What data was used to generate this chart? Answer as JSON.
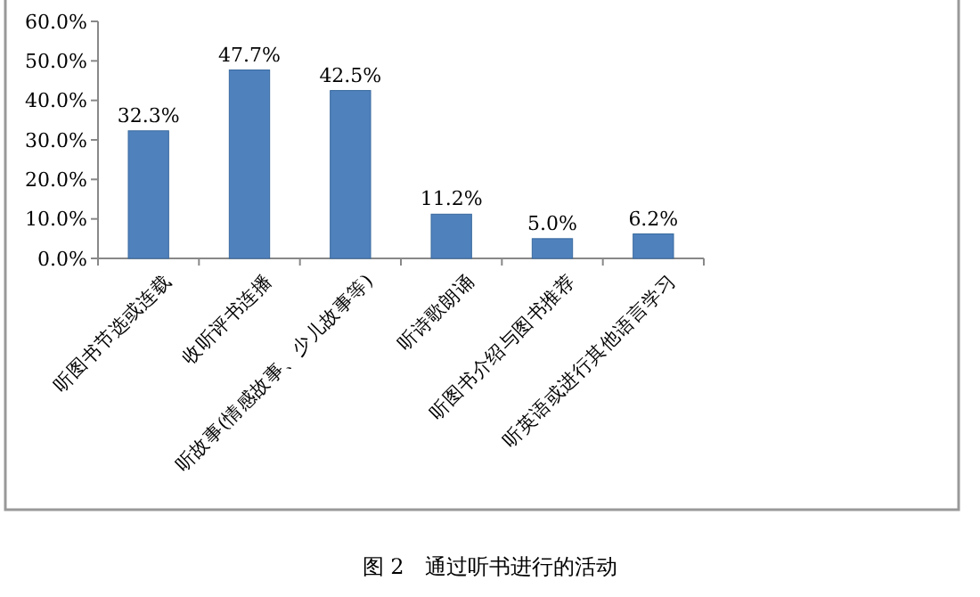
{
  "chart_data": {
    "type": "bar",
    "title": "图 2　通过听书进行的活动",
    "categories": [
      "听图书节选或连载",
      "收听评书连播",
      "听故事(情感故事、少儿故事等)",
      "听诗歌朗诵",
      "听图书介绍与图书推荐",
      "听英语或进行其他语言学习"
    ],
    "values": [
      32.3,
      47.7,
      42.5,
      11.2,
      5.0,
      6.2
    ],
    "value_labels": [
      "32.3%",
      "47.7%",
      "42.5%",
      "11.2%",
      "5.0%",
      "6.2%"
    ],
    "color": "#4f81bd",
    "ylim": [
      0,
      60
    ],
    "yticks": [
      {
        "value": 0,
        "label": "0.0%"
      },
      {
        "value": 10,
        "label": "10.0%"
      },
      {
        "value": 20,
        "label": "20.0%"
      },
      {
        "value": 30,
        "label": "30.0%"
      },
      {
        "value": 40,
        "label": "40.0%"
      },
      {
        "value": 50,
        "label": "50.0%"
      },
      {
        "value": 60,
        "label": "60.0%"
      }
    ],
    "grid": false
  }
}
